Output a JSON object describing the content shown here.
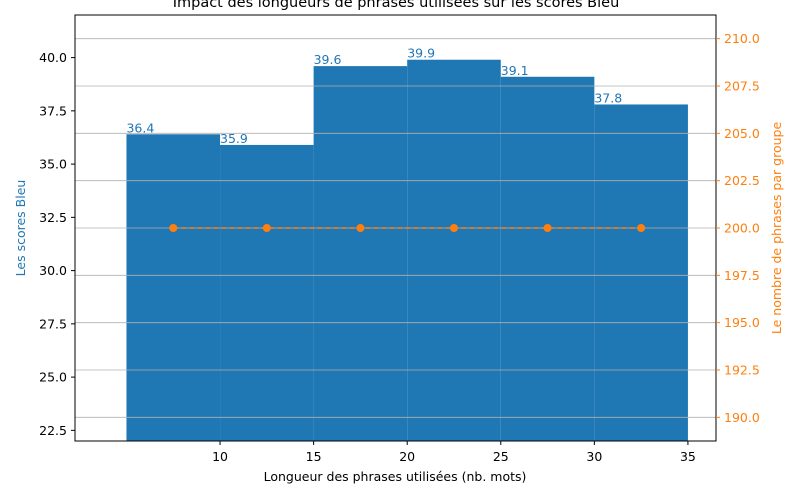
{
  "chart_data": {
    "type": "bar",
    "title": "Impact des longueurs de phrases utilisées sur les scores Bleu",
    "xlabel": "Longueur des phrases utilisées (nb. mots)",
    "ylabel": "Les scores Bleu",
    "y2label": "Le nombre de phrases par groupe",
    "xlim": [
      2.25,
      36.5
    ],
    "ylim": [
      22,
      42
    ],
    "y2lim": [
      188.75,
      211.25
    ],
    "xticks": [
      10,
      15,
      20,
      25,
      30,
      35
    ],
    "yticks": [
      22.5,
      25.0,
      27.5,
      30.0,
      32.5,
      35.0,
      37.5,
      40.0
    ],
    "y2ticks": [
      190.0,
      192.5,
      195.0,
      197.5,
      200.0,
      202.5,
      205.0,
      207.5,
      210.0
    ],
    "grid": "horizontal (secondary axis)",
    "bars": {
      "name": "Les scores Bleu",
      "bin_edges": [
        5,
        10,
        15,
        20,
        25,
        30,
        35
      ],
      "values": [
        36.4,
        35.9,
        39.6,
        39.9,
        39.1,
        37.8
      ],
      "labels": [
        "36.4",
        "35.9",
        "39.6",
        "39.9",
        "39.1",
        "37.8"
      ]
    },
    "line": {
      "name": "Le nombre de phrases par groupe",
      "x": [
        7.5,
        12.5,
        17.5,
        22.5,
        27.5,
        32.5
      ],
      "values": [
        200,
        200,
        200,
        200,
        200,
        200
      ]
    },
    "colors": {
      "bars": "#1f77b4",
      "line": "#ff7f0e",
      "grid": "#b0b0b0",
      "axis": "#000000"
    }
  }
}
